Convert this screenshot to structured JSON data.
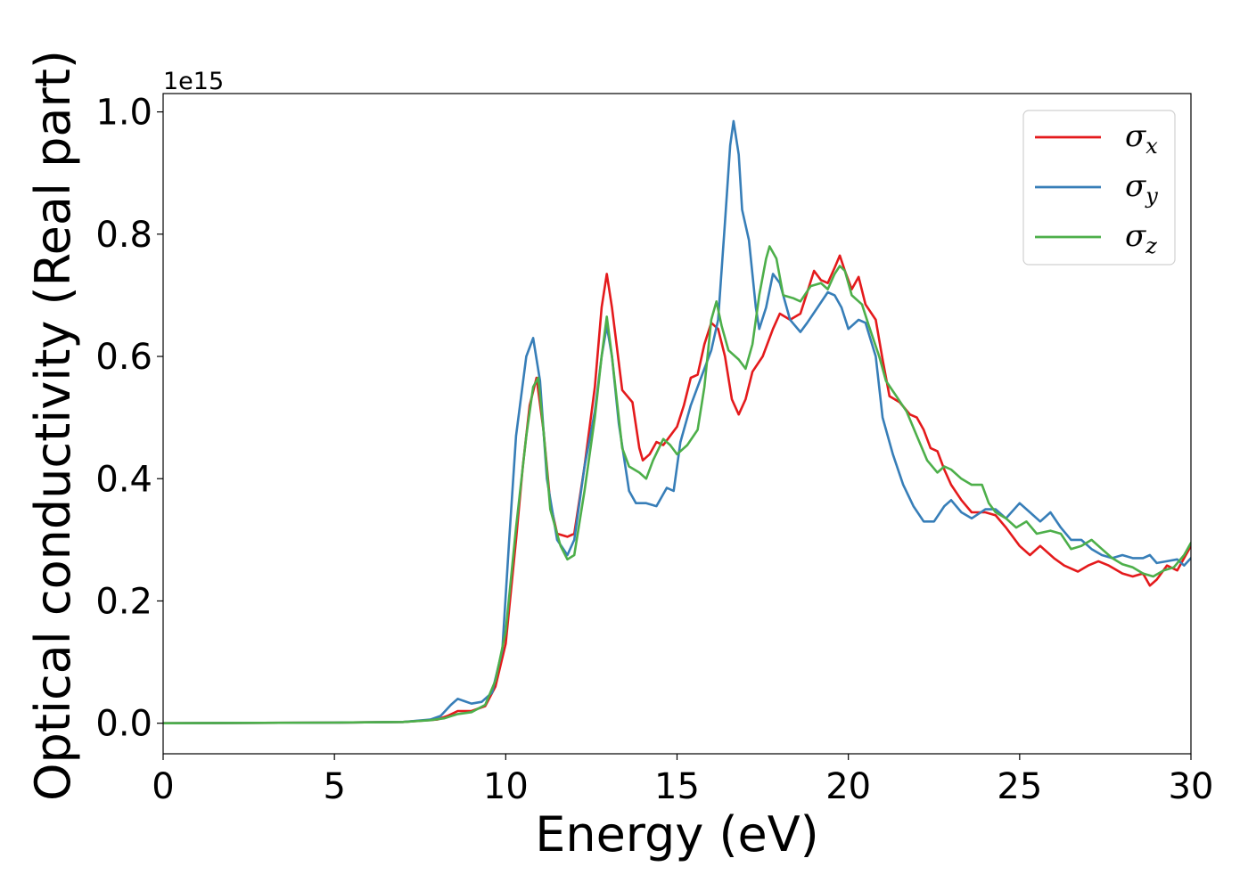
{
  "chart_data": {
    "type": "line",
    "xlabel": "Energy (eV)",
    "ylabel": "Optical conductivity (Real part)",
    "y_offset_text": "1e15",
    "xlim": [
      0,
      30
    ],
    "ylim": [
      -0.05,
      1.03
    ],
    "x_ticks": [
      0,
      5,
      10,
      15,
      20,
      25,
      30
    ],
    "x_tick_labels": [
      "0",
      "5",
      "10",
      "15",
      "20",
      "25",
      "30"
    ],
    "y_ticks": [
      0.0,
      0.2,
      0.4,
      0.6,
      0.8,
      1.0
    ],
    "y_tick_labels": [
      "0.0",
      "0.2",
      "0.4",
      "0.6",
      "0.8",
      "1.0"
    ],
    "grid": false,
    "legend_position": "top-right",
    "series": [
      {
        "name": "σ",
        "subscript": "x",
        "color": "#e41a1c",
        "points": [
          [
            0,
            0
          ],
          [
            5,
            0.001
          ],
          [
            7,
            0.002
          ],
          [
            8,
            0.006
          ],
          [
            8.3,
            0.012
          ],
          [
            8.6,
            0.02
          ],
          [
            9,
            0.02
          ],
          [
            9.4,
            0.028
          ],
          [
            9.7,
            0.06
          ],
          [
            10,
            0.13
          ],
          [
            10.3,
            0.3
          ],
          [
            10.5,
            0.42
          ],
          [
            10.7,
            0.52
          ],
          [
            10.9,
            0.565
          ],
          [
            11.1,
            0.48
          ],
          [
            11.3,
            0.36
          ],
          [
            11.5,
            0.31
          ],
          [
            11.8,
            0.305
          ],
          [
            12,
            0.31
          ],
          [
            12.3,
            0.42
          ],
          [
            12.6,
            0.55
          ],
          [
            12.8,
            0.68
          ],
          [
            12.95,
            0.735
          ],
          [
            13.1,
            0.68
          ],
          [
            13.4,
            0.545
          ],
          [
            13.7,
            0.525
          ],
          [
            13.9,
            0.45
          ],
          [
            14,
            0.43
          ],
          [
            14.2,
            0.44
          ],
          [
            14.4,
            0.46
          ],
          [
            14.6,
            0.455
          ],
          [
            14.8,
            0.47
          ],
          [
            15,
            0.485
          ],
          [
            15.2,
            0.52
          ],
          [
            15.4,
            0.565
          ],
          [
            15.6,
            0.57
          ],
          [
            15.8,
            0.62
          ],
          [
            16,
            0.655
          ],
          [
            16.2,
            0.645
          ],
          [
            16.4,
            0.6
          ],
          [
            16.6,
            0.53
          ],
          [
            16.8,
            0.505
          ],
          [
            17,
            0.53
          ],
          [
            17.2,
            0.575
          ],
          [
            17.5,
            0.6
          ],
          [
            17.8,
            0.645
          ],
          [
            18,
            0.67
          ],
          [
            18.3,
            0.66
          ],
          [
            18.6,
            0.67
          ],
          [
            19,
            0.74
          ],
          [
            19.2,
            0.725
          ],
          [
            19.4,
            0.72
          ],
          [
            19.6,
            0.745
          ],
          [
            19.75,
            0.765
          ],
          [
            19.9,
            0.74
          ],
          [
            20.1,
            0.71
          ],
          [
            20.3,
            0.73
          ],
          [
            20.5,
            0.685
          ],
          [
            20.8,
            0.66
          ],
          [
            21,
            0.595
          ],
          [
            21.2,
            0.535
          ],
          [
            21.5,
            0.525
          ],
          [
            21.8,
            0.505
          ],
          [
            22,
            0.5
          ],
          [
            22.2,
            0.48
          ],
          [
            22.4,
            0.45
          ],
          [
            22.6,
            0.445
          ],
          [
            22.8,
            0.415
          ],
          [
            23,
            0.39
          ],
          [
            23.3,
            0.365
          ],
          [
            23.6,
            0.345
          ],
          [
            24,
            0.345
          ],
          [
            24.3,
            0.34
          ],
          [
            24.6,
            0.32
          ],
          [
            25,
            0.29
          ],
          [
            25.3,
            0.275
          ],
          [
            25.6,
            0.29
          ],
          [
            26,
            0.27
          ],
          [
            26.3,
            0.258
          ],
          [
            26.7,
            0.248
          ],
          [
            27,
            0.258
          ],
          [
            27.3,
            0.265
          ],
          [
            27.6,
            0.258
          ],
          [
            28,
            0.245
          ],
          [
            28.3,
            0.24
          ],
          [
            28.6,
            0.245
          ],
          [
            28.8,
            0.225
          ],
          [
            29,
            0.235
          ],
          [
            29.3,
            0.258
          ],
          [
            29.6,
            0.25
          ],
          [
            30,
            0.29
          ]
        ]
      },
      {
        "name": "σ",
        "subscript": "y",
        "color": "#377eb8",
        "points": [
          [
            0,
            0
          ],
          [
            5,
            0.001
          ],
          [
            7,
            0.002
          ],
          [
            7.8,
            0.006
          ],
          [
            8.1,
            0.012
          ],
          [
            8.4,
            0.03
          ],
          [
            8.6,
            0.04
          ],
          [
            8.8,
            0.036
          ],
          [
            9,
            0.032
          ],
          [
            9.3,
            0.035
          ],
          [
            9.6,
            0.05
          ],
          [
            9.9,
            0.12
          ],
          [
            10.1,
            0.3
          ],
          [
            10.3,
            0.47
          ],
          [
            10.6,
            0.6
          ],
          [
            10.8,
            0.63
          ],
          [
            11,
            0.56
          ],
          [
            11.2,
            0.4
          ],
          [
            11.5,
            0.3
          ],
          [
            11.8,
            0.275
          ],
          [
            12,
            0.3
          ],
          [
            12.3,
            0.42
          ],
          [
            12.6,
            0.51
          ],
          [
            12.8,
            0.6
          ],
          [
            12.95,
            0.65
          ],
          [
            13.1,
            0.6
          ],
          [
            13.3,
            0.49
          ],
          [
            13.6,
            0.38
          ],
          [
            13.8,
            0.36
          ],
          [
            14.1,
            0.36
          ],
          [
            14.4,
            0.355
          ],
          [
            14.7,
            0.385
          ],
          [
            14.9,
            0.38
          ],
          [
            15.1,
            0.46
          ],
          [
            15.4,
            0.52
          ],
          [
            15.7,
            0.565
          ],
          [
            16,
            0.61
          ],
          [
            16.2,
            0.66
          ],
          [
            16.4,
            0.82
          ],
          [
            16.55,
            0.945
          ],
          [
            16.65,
            0.985
          ],
          [
            16.8,
            0.93
          ],
          [
            16.9,
            0.84
          ],
          [
            17.1,
            0.79
          ],
          [
            17.3,
            0.68
          ],
          [
            17.4,
            0.645
          ],
          [
            17.6,
            0.68
          ],
          [
            17.8,
            0.735
          ],
          [
            18,
            0.72
          ],
          [
            18.3,
            0.66
          ],
          [
            18.6,
            0.64
          ],
          [
            18.8,
            0.655
          ],
          [
            19.1,
            0.68
          ],
          [
            19.4,
            0.705
          ],
          [
            19.6,
            0.7
          ],
          [
            19.8,
            0.68
          ],
          [
            20,
            0.645
          ],
          [
            20.3,
            0.66
          ],
          [
            20.5,
            0.655
          ],
          [
            20.8,
            0.6
          ],
          [
            21,
            0.5
          ],
          [
            21.3,
            0.44
          ],
          [
            21.6,
            0.39
          ],
          [
            21.9,
            0.355
          ],
          [
            22.2,
            0.33
          ],
          [
            22.5,
            0.33
          ],
          [
            22.8,
            0.355
          ],
          [
            23,
            0.365
          ],
          [
            23.3,
            0.345
          ],
          [
            23.6,
            0.335
          ],
          [
            24,
            0.35
          ],
          [
            24.3,
            0.35
          ],
          [
            24.6,
            0.335
          ],
          [
            25,
            0.36
          ],
          [
            25.3,
            0.345
          ],
          [
            25.6,
            0.33
          ],
          [
            25.9,
            0.345
          ],
          [
            26.2,
            0.32
          ],
          [
            26.5,
            0.3
          ],
          [
            26.8,
            0.3
          ],
          [
            27.1,
            0.285
          ],
          [
            27.4,
            0.275
          ],
          [
            27.7,
            0.27
          ],
          [
            28,
            0.275
          ],
          [
            28.3,
            0.27
          ],
          [
            28.6,
            0.27
          ],
          [
            28.8,
            0.275
          ],
          [
            29,
            0.262
          ],
          [
            29.3,
            0.265
          ],
          [
            29.6,
            0.268
          ],
          [
            29.8,
            0.258
          ],
          [
            30,
            0.27
          ]
        ]
      },
      {
        "name": "σ",
        "subscript": "z",
        "color": "#4daf4a",
        "points": [
          [
            0,
            0
          ],
          [
            5,
            0.001
          ],
          [
            7,
            0.002
          ],
          [
            7.8,
            0.005
          ],
          [
            8.2,
            0.008
          ],
          [
            8.6,
            0.015
          ],
          [
            9,
            0.018
          ],
          [
            9.4,
            0.03
          ],
          [
            9.7,
            0.07
          ],
          [
            10,
            0.15
          ],
          [
            10.3,
            0.32
          ],
          [
            10.6,
            0.47
          ],
          [
            10.8,
            0.55
          ],
          [
            10.95,
            0.565
          ],
          [
            11.1,
            0.48
          ],
          [
            11.3,
            0.35
          ],
          [
            11.6,
            0.29
          ],
          [
            11.8,
            0.268
          ],
          [
            12,
            0.275
          ],
          [
            12.3,
            0.38
          ],
          [
            12.6,
            0.5
          ],
          [
            12.8,
            0.6
          ],
          [
            12.95,
            0.665
          ],
          [
            13.1,
            0.6
          ],
          [
            13.4,
            0.45
          ],
          [
            13.6,
            0.42
          ],
          [
            13.9,
            0.41
          ],
          [
            14.1,
            0.4
          ],
          [
            14.3,
            0.43
          ],
          [
            14.6,
            0.465
          ],
          [
            14.8,
            0.455
          ],
          [
            15,
            0.44
          ],
          [
            15.3,
            0.455
          ],
          [
            15.6,
            0.48
          ],
          [
            15.8,
            0.55
          ],
          [
            16,
            0.66
          ],
          [
            16.15,
            0.69
          ],
          [
            16.3,
            0.65
          ],
          [
            16.5,
            0.61
          ],
          [
            16.8,
            0.595
          ],
          [
            17,
            0.58
          ],
          [
            17.2,
            0.62
          ],
          [
            17.4,
            0.7
          ],
          [
            17.6,
            0.76
          ],
          [
            17.7,
            0.78
          ],
          [
            17.9,
            0.76
          ],
          [
            18.1,
            0.7
          ],
          [
            18.4,
            0.695
          ],
          [
            18.6,
            0.69
          ],
          [
            18.9,
            0.715
          ],
          [
            19.2,
            0.72
          ],
          [
            19.4,
            0.71
          ],
          [
            19.6,
            0.735
          ],
          [
            19.75,
            0.748
          ],
          [
            19.9,
            0.74
          ],
          [
            20.1,
            0.7
          ],
          [
            20.4,
            0.685
          ],
          [
            20.6,
            0.65
          ],
          [
            20.9,
            0.6
          ],
          [
            21.1,
            0.56
          ],
          [
            21.4,
            0.535
          ],
          [
            21.7,
            0.51
          ],
          [
            22,
            0.47
          ],
          [
            22.3,
            0.43
          ],
          [
            22.6,
            0.41
          ],
          [
            22.8,
            0.42
          ],
          [
            23,
            0.415
          ],
          [
            23.3,
            0.4
          ],
          [
            23.6,
            0.39
          ],
          [
            23.9,
            0.39
          ],
          [
            24.1,
            0.36
          ],
          [
            24.3,
            0.345
          ],
          [
            24.6,
            0.335
          ],
          [
            24.9,
            0.32
          ],
          [
            25.2,
            0.33
          ],
          [
            25.5,
            0.31
          ],
          [
            25.9,
            0.315
          ],
          [
            26.2,
            0.31
          ],
          [
            26.5,
            0.285
          ],
          [
            26.8,
            0.29
          ],
          [
            27.1,
            0.3
          ],
          [
            27.4,
            0.285
          ],
          [
            27.7,
            0.27
          ],
          [
            28,
            0.26
          ],
          [
            28.3,
            0.255
          ],
          [
            28.6,
            0.245
          ],
          [
            28.9,
            0.24
          ],
          [
            29.2,
            0.25
          ],
          [
            29.5,
            0.255
          ],
          [
            29.8,
            0.275
          ],
          [
            30,
            0.295
          ]
        ]
      }
    ]
  }
}
